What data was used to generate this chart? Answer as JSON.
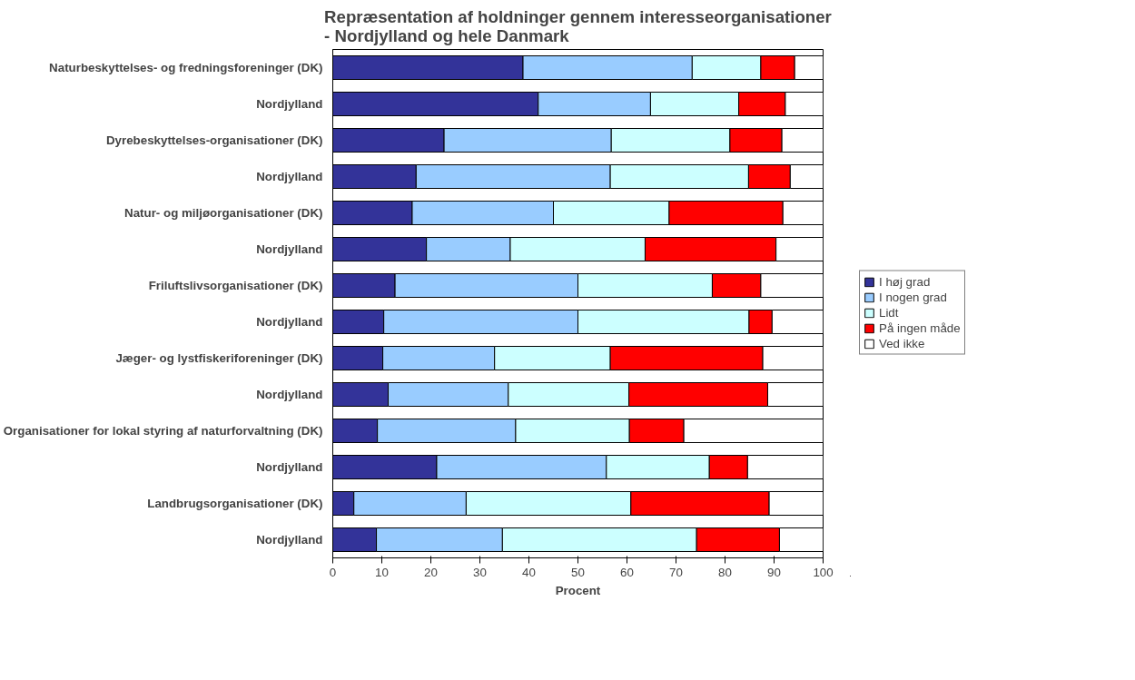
{
  "chart_data": {
    "type": "bar",
    "orientation": "horizontal",
    "stacked": true,
    "title": "Repræsentation af holdninger gennem interesseorganisationer\n- Nordjylland og hele Danmark",
    "xlabel": "Procent",
    "categories": [
      "Naturbeskyttelses- og fredningsforeninger (DK)",
      "Nordjylland",
      "Dyrebeskyttelses-organisationer (DK)",
      "Nordjylland",
      "Natur- og miljøorganisationer (DK)",
      "Nordjylland",
      "Friluftslivsorganisationer (DK)",
      "Nordjylland",
      "Jæger- og lystfiskeriforeninger (DK)",
      "Nordjylland",
      "Organisationer for lokal styring af naturforvaltning (DK)",
      "Nordjylland",
      "Landbrugsorganisationer (DK)",
      "Nordjylland"
    ],
    "series": [
      {
        "name": "I høj grad",
        "color": "#333399",
        "values": [
          38.8,
          41.9,
          22.7,
          17.0,
          16.2,
          19.1,
          12.7,
          10.4,
          10.2,
          11.3,
          9.1,
          21.2,
          4.3,
          8.9
        ]
      },
      {
        "name": "I nogen grad",
        "color": "#99ccff",
        "values": [
          34.5,
          22.9,
          34.1,
          39.6,
          28.8,
          17.1,
          37.3,
          39.6,
          22.8,
          24.5,
          28.2,
          34.6,
          22.9,
          25.7
        ]
      },
      {
        "name": "Lidt",
        "color": "#ccffff",
        "values": [
          14.0,
          18.0,
          24.2,
          28.2,
          23.6,
          27.5,
          27.4,
          34.9,
          23.6,
          24.6,
          23.2,
          21.0,
          33.6,
          39.6
        ]
      },
      {
        "name": "På ingen måde",
        "color": "#ff0000",
        "values": [
          6.9,
          9.5,
          10.6,
          8.5,
          23.2,
          26.7,
          9.9,
          4.7,
          31.1,
          28.3,
          11.1,
          7.8,
          28.2,
          16.9
        ]
      },
      {
        "name": "Ved ikke",
        "color": "#ffffff",
        "values": [
          5.8,
          7.7,
          8.4,
          6.7,
          8.2,
          9.6,
          12.7,
          10.4,
          12.3,
          11.3,
          28.4,
          15.4,
          11.0,
          8.9
        ]
      }
    ],
    "xlim": [
      0,
      100
    ],
    "xticks": [
      0,
      10,
      20,
      30,
      40,
      50,
      60,
      70,
      80,
      90,
      100
    ],
    "grid": false,
    "legend": "right"
  }
}
